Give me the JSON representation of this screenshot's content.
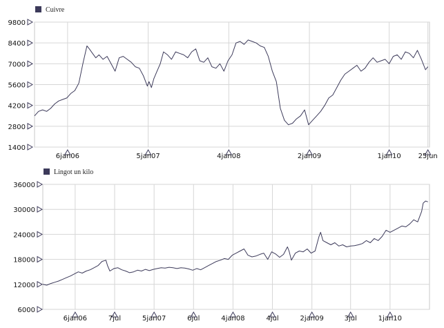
{
  "colors": {
    "series": "#3c3a5a",
    "marker": "#3c3a5a",
    "grid": "#d6d6d6"
  },
  "chart_data": [
    {
      "type": "line",
      "legend": "Cuivre",
      "legend_placement": "top-left",
      "grid": true,
      "ylim": [
        1400,
        9800
      ],
      "yticks": [
        "9800",
        "8400",
        "7000",
        "5600",
        "4200",
        "2800",
        "1400"
      ],
      "xlim": [
        2005.6,
        2010.5
      ],
      "xticks": [
        {
          "label": "6jan06",
          "x": 2006.01
        },
        {
          "label": "5jan07",
          "x": 2007.01
        },
        {
          "label": "4jan08",
          "x": 2008.01
        },
        {
          "label": "2jan09",
          "x": 2009.01
        },
        {
          "label": "1jan10",
          "x": 2010.0
        },
        {
          "label": "25jun",
          "x": 2010.48
        }
      ],
      "series": [
        {
          "x": [
            2005.6,
            2005.65,
            2005.7,
            2005.75,
            2005.8,
            2005.85,
            2005.9,
            2005.95,
            2006.0,
            2006.05,
            2006.1,
            2006.15,
            2006.2,
            2006.25,
            2006.28,
            2006.32,
            2006.36,
            2006.4,
            2006.45,
            2006.5,
            2006.55,
            2006.6,
            2006.65,
            2006.7,
            2006.75,
            2006.8,
            2006.85,
            2006.9,
            2006.95,
            2007.0,
            2007.02,
            2007.05,
            2007.08,
            2007.12,
            2007.16,
            2007.2,
            2007.25,
            2007.3,
            2007.35,
            2007.4,
            2007.45,
            2007.5,
            2007.55,
            2007.6,
            2007.65,
            2007.7,
            2007.75,
            2007.8,
            2007.85,
            2007.9,
            2007.95,
            2008.0,
            2008.05,
            2008.1,
            2008.15,
            2008.2,
            2008.25,
            2008.3,
            2008.35,
            2008.4,
            2008.45,
            2008.5,
            2008.55,
            2008.6,
            2008.65,
            2008.7,
            2008.75,
            2008.8,
            2008.85,
            2008.9,
            2008.95,
            2009.0,
            2009.05,
            2009.1,
            2009.15,
            2009.2,
            2009.25,
            2009.3,
            2009.35,
            2009.4,
            2009.45,
            2009.5,
            2009.55,
            2009.6,
            2009.65,
            2009.7,
            2009.75,
            2009.8,
            2009.85,
            2009.9,
            2009.95,
            2010.0,
            2010.05,
            2010.1,
            2010.15,
            2010.2,
            2010.25,
            2010.3,
            2010.35,
            2010.4,
            2010.45,
            2010.48
          ],
          "y": [
            3500,
            3800,
            3900,
            3800,
            4000,
            4300,
            4500,
            4600,
            4700,
            5000,
            5200,
            5700,
            7000,
            8200,
            8000,
            7700,
            7400,
            7600,
            7300,
            7500,
            7000,
            6500,
            7400,
            7500,
            7300,
            7100,
            6800,
            6700,
            6200,
            5500,
            5800,
            5400,
            6000,
            6500,
            7000,
            7800,
            7600,
            7300,
            7800,
            7700,
            7600,
            7400,
            7800,
            8000,
            7200,
            7100,
            7400,
            6800,
            6700,
            7000,
            6500,
            7200,
            7600,
            8400,
            8500,
            8300,
            8600,
            8500,
            8400,
            8200,
            8100,
            7500,
            6500,
            5800,
            4000,
            3200,
            2900,
            3000,
            3300,
            3500,
            3900,
            2900,
            3200,
            3500,
            3800,
            4200,
            4700,
            4900,
            5400,
            5900,
            6300,
            6500,
            6700,
            6900,
            6500,
            6700,
            7100,
            7400,
            7100,
            7200,
            7300,
            7000,
            7500,
            7600,
            7300,
            7800,
            7700,
            7400,
            7900,
            7300,
            6600,
            6800
          ]
        }
      ]
    },
    {
      "type": "line",
      "legend": "Lingot un kilo",
      "legend_placement": "top-left",
      "grid": true,
      "ylim": [
        6000,
        36000
      ],
      "yticks": [
        "36000",
        "30000",
        "24000",
        "18000",
        "12000",
        "6000"
      ],
      "xlim": [
        2005.6,
        2010.5
      ],
      "xticks": [
        {
          "label": "6jan06",
          "x": 2006.01
        },
        {
          "label": "7jul",
          "x": 2006.51
        },
        {
          "label": "5jan07",
          "x": 2007.01
        },
        {
          "label": "6jul",
          "x": 2007.51
        },
        {
          "label": "4jan08",
          "x": 2008.01
        },
        {
          "label": "4jul",
          "x": 2008.51
        },
        {
          "label": "2jan09",
          "x": 2009.01
        },
        {
          "label": "3jul",
          "x": 2009.5
        },
        {
          "label": "1jan10",
          "x": 2010.0
        }
      ],
      "series": [
        {
          "x": [
            2005.6,
            2005.65,
            2005.7,
            2005.75,
            2005.8,
            2005.85,
            2005.9,
            2005.95,
            2006.0,
            2006.05,
            2006.1,
            2006.15,
            2006.2,
            2006.25,
            2006.3,
            2006.35,
            2006.4,
            2006.42,
            2006.45,
            2006.5,
            2006.55,
            2006.6,
            2006.65,
            2006.7,
            2006.75,
            2006.8,
            2006.85,
            2006.9,
            2006.95,
            2007.0,
            2007.05,
            2007.1,
            2007.15,
            2007.2,
            2007.25,
            2007.3,
            2007.35,
            2007.4,
            2007.45,
            2007.5,
            2007.55,
            2007.6,
            2007.65,
            2007.7,
            2007.75,
            2007.8,
            2007.85,
            2007.9,
            2007.95,
            2008.0,
            2008.05,
            2008.1,
            2008.15,
            2008.2,
            2008.25,
            2008.3,
            2008.35,
            2008.4,
            2008.45,
            2008.5,
            2008.55,
            2008.6,
            2008.65,
            2008.7,
            2008.72,
            2008.75,
            2008.8,
            2008.85,
            2008.9,
            2008.95,
            2009.0,
            2009.05,
            2009.1,
            2009.12,
            2009.15,
            2009.2,
            2009.25,
            2009.3,
            2009.35,
            2009.4,
            2009.45,
            2009.5,
            2009.55,
            2009.6,
            2009.65,
            2009.7,
            2009.75,
            2009.8,
            2009.85,
            2009.9,
            2009.95,
            2010.0,
            2010.05,
            2010.1,
            2010.15,
            2010.2,
            2010.25,
            2010.3,
            2010.35,
            2010.4,
            2010.42,
            2010.45,
            2010.48
          ],
          "y": [
            12000,
            11800,
            12200,
            12500,
            12800,
            13200,
            13600,
            14000,
            14500,
            15000,
            14700,
            15200,
            15500,
            16000,
            16500,
            17500,
            17800,
            16500,
            15200,
            15800,
            16000,
            15500,
            15200,
            14800,
            15000,
            15400,
            15200,
            15600,
            15300,
            15600,
            15800,
            16000,
            15900,
            16100,
            16000,
            15800,
            16000,
            15900,
            15700,
            15400,
            15800,
            15500,
            16000,
            16500,
            17000,
            17500,
            17800,
            18200,
            18000,
            19000,
            19500,
            20000,
            20500,
            19000,
            18600,
            18800,
            19200,
            19500,
            18000,
            19800,
            19300,
            18500,
            19200,
            21000,
            20000,
            17800,
            19500,
            20000,
            19800,
            20500,
            19500,
            20000,
            23500,
            24500,
            22500,
            22000,
            21500,
            22000,
            21200,
            21500,
            21000,
            21200,
            21300,
            21500,
            21800,
            22500,
            22000,
            23000,
            22500,
            23500,
            25000,
            24500,
            25000,
            25500,
            26000,
            25800,
            26500,
            27500,
            27000,
            29500,
            31500,
            32000,
            31800
          ]
        }
      ]
    }
  ]
}
